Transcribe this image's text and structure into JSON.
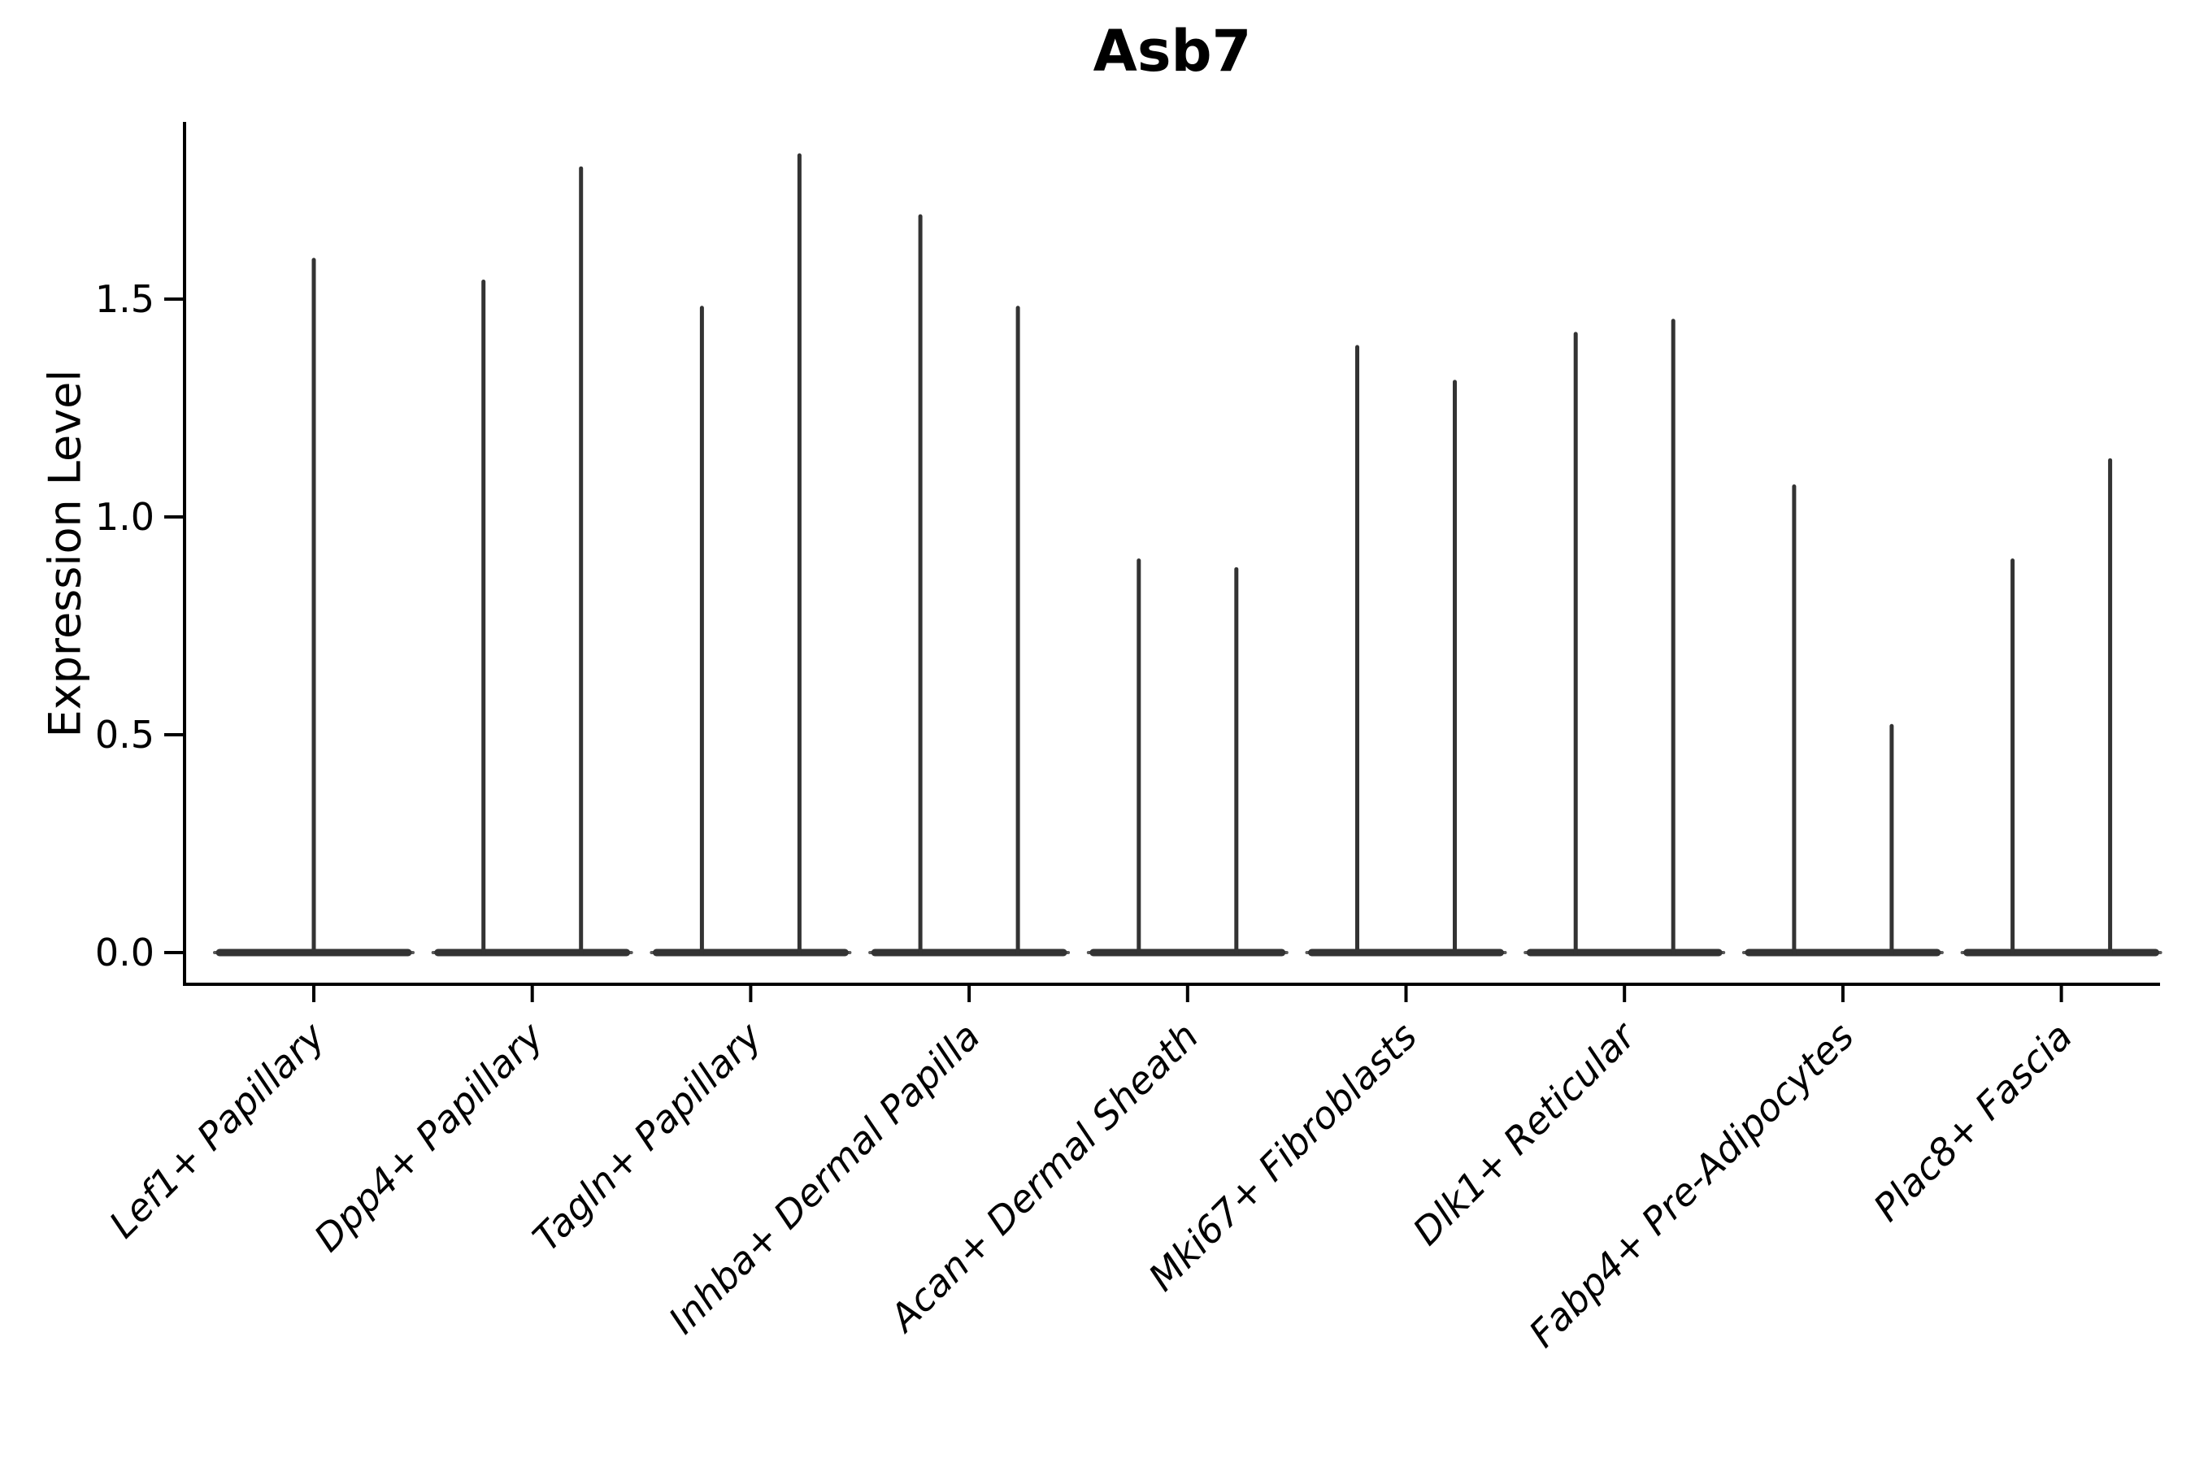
{
  "figure": {
    "title": "Asb7",
    "background": "#ffffff"
  },
  "axes": {
    "ylabel": "Expression Level",
    "ytick_labels": [
      "0.0",
      "0.5",
      "1.0",
      "1.5"
    ],
    "xtick_rotation_deg": 45,
    "spines": [
      "left",
      "bottom"
    ],
    "spine_color": "#000000"
  },
  "colors": {
    "violin_line": "#333333",
    "violin_tip": "#5a5a5a",
    "text": "#000000"
  },
  "chart_data": {
    "type": "violin",
    "title": "Asb7",
    "xlabel": "",
    "ylabel": "Expression Level",
    "yticks": [
      0.0,
      0.5,
      1.0,
      1.5
    ],
    "ylim": [
      -0.05,
      1.92
    ],
    "grid": false,
    "legend": false,
    "categories": [
      "Lef1+ Papillary",
      "Dpp4+ Papillary",
      "Tagln+ Papillary",
      "Inhba+ Dermal Papilla",
      "Acan+ Dermal Sheath",
      "Mki67+ Fibroblasts",
      "Dlk1+ Reticular",
      "Fabp4+ Pre-Adipocytes",
      "Plac8+ Fascia"
    ],
    "series": [
      {
        "category": "Lef1+ Papillary",
        "body_at_zero": true,
        "spike_maxima": [
          1.59
        ]
      },
      {
        "category": "Dpp4+ Papillary",
        "body_at_zero": true,
        "spike_maxima": [
          1.54,
          1.8
        ]
      },
      {
        "category": "Tagln+ Papillary",
        "body_at_zero": true,
        "spike_maxima": [
          1.48,
          1.83
        ]
      },
      {
        "category": "Inhba+ Dermal Papilla",
        "body_at_zero": true,
        "spike_maxima": [
          1.69,
          1.48
        ]
      },
      {
        "category": "Acan+ Dermal Sheath",
        "body_at_zero": true,
        "spike_maxima": [
          0.9,
          0.88
        ]
      },
      {
        "category": "Mki67+ Fibroblasts",
        "body_at_zero": true,
        "spike_maxima": [
          1.39,
          1.31
        ]
      },
      {
        "category": "Dlk1+ Reticular",
        "body_at_zero": true,
        "spike_maxima": [
          1.42,
          1.45
        ]
      },
      {
        "category": "Fabp4+ Pre-Adipocytes",
        "body_at_zero": true,
        "spike_maxima": [
          1.07,
          0.52
        ]
      },
      {
        "category": "Plac8+ Fascia",
        "body_at_zero": true,
        "spike_maxima": [
          0.9,
          1.13
        ]
      }
    ],
    "description": "Violin plot of Asb7 expression per fibroblast cell type; each violin is collapsed into a wide flat body at 0 expression with thin spikes rising to the maximum expression values."
  }
}
